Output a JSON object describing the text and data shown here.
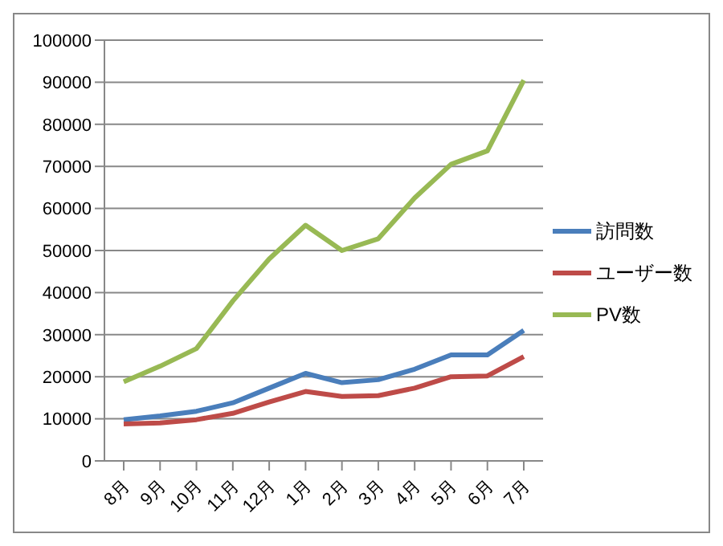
{
  "chart_data": {
    "type": "line",
    "categories": [
      "8月",
      "9月",
      "10月",
      "11月",
      "12月",
      "1月",
      "2月",
      "3月",
      "4月",
      "5月",
      "6月",
      "7月"
    ],
    "series": [
      {
        "name": "訪問数",
        "color": "#4a7ebb",
        "values": [
          9800,
          10700,
          11800,
          13800,
          17300,
          20800,
          18600,
          19300,
          21800,
          25200,
          25200,
          31000
        ]
      },
      {
        "name": "ユーザー数",
        "color": "#be4b48",
        "values": [
          8800,
          9000,
          9800,
          11300,
          14000,
          16500,
          15300,
          15500,
          17300,
          20000,
          20200,
          24800
        ]
      },
      {
        "name": "PV数",
        "color": "#98b954",
        "values": [
          18800,
          22500,
          26700,
          38000,
          48000,
          56000,
          50000,
          52800,
          62500,
          70500,
          73700,
          90500
        ]
      }
    ],
    "ylim": [
      0,
      100000
    ],
    "yticks": [
      0,
      10000,
      20000,
      30000,
      40000,
      50000,
      60000,
      70000,
      80000,
      90000,
      100000
    ],
    "grid": "y",
    "legend": "right",
    "marker": "none",
    "line_style": "solid"
  }
}
